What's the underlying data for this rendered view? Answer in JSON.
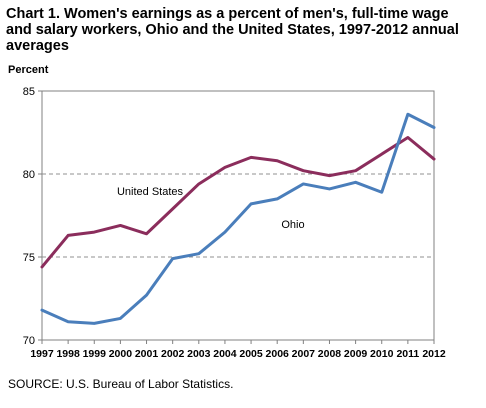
{
  "chart_data": {
    "type": "line",
    "title": "Chart 1. Women's earnings as a percent of men's, full-time wage and salary workers, Ohio and the United  States, 1997-2012  annual averages",
    "ylabel": "Percent",
    "xlabel": "",
    "ylim": [
      70,
      85
    ],
    "yticks": [
      70,
      75,
      80,
      85
    ],
    "gridlines": [
      75,
      80
    ],
    "grid": "dashed at 75 and 80",
    "x": [
      "1997",
      "1998",
      "1999",
      "2000",
      "2001",
      "2002",
      "2003",
      "2004",
      "2005",
      "2006",
      "2007",
      "2008",
      "2009",
      "2010",
      "2011",
      "2012"
    ],
    "series": [
      {
        "name": "United  States",
        "color": "#8b2d5c",
        "values": [
          74.4,
          76.3,
          76.5,
          76.9,
          76.4,
          77.9,
          79.4,
          80.4,
          81.0,
          80.8,
          80.2,
          79.9,
          80.2,
          81.2,
          82.2,
          80.9
        ]
      },
      {
        "name": "Ohio",
        "color": "#4a7ebb",
        "values": [
          71.8,
          71.1,
          71.0,
          71.3,
          72.7,
          74.9,
          75.2,
          76.5,
          78.2,
          78.5,
          79.4,
          79.1,
          79.5,
          78.9,
          83.6,
          82.8
        ]
      }
    ],
    "labels": [
      {
        "series": 0,
        "text": "United  States"
      },
      {
        "series": 1,
        "text": "Ohio"
      }
    ]
  },
  "footer": {
    "source": "SOURCE:  U.S. Bureau of Labor Statistics."
  }
}
